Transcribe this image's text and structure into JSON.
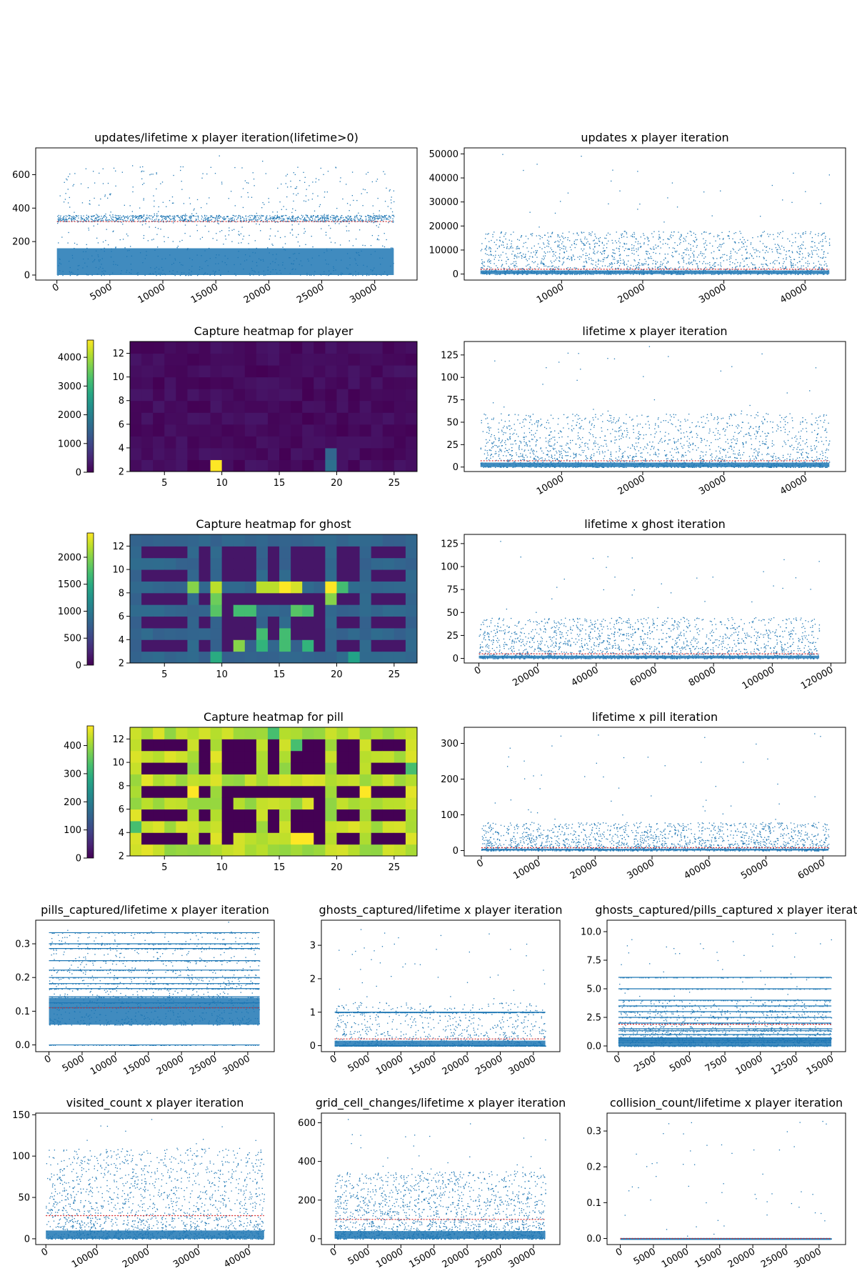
{
  "figure": {
    "background": "#ffffff",
    "scatter_color": "#1f77b4",
    "mean_line_color": "#d62728",
    "colormap": "viridis"
  },
  "chart_data": [
    {
      "id": "updates_lifetime",
      "type": "scatter",
      "title": "updates/lifetime x player iteration(lifetime>0)",
      "xlim": [
        -2000,
        34000
      ],
      "ylim": [
        -30,
        760
      ],
      "xticks": [
        0,
        5000,
        10000,
        15000,
        20000,
        25000,
        30000
      ],
      "xtick_labels": [
        "0",
        "5000",
        "10000",
        "15000",
        "20000",
        "25000",
        "30000"
      ],
      "yticks": [
        0,
        200,
        400,
        600
      ],
      "ytick_labels": [
        "0",
        "200",
        "400",
        "600"
      ],
      "series_x_range": [
        0,
        31800
      ],
      "mean": 320,
      "band": {
        "center": 340,
        "spread": 40
      },
      "body": {
        "low": 0,
        "median": 320,
        "high": 650
      },
      "outliers": {
        "max": 740
      }
    },
    {
      "id": "updates",
      "type": "scatter",
      "title": "updates x player iteration",
      "xlim": [
        -2000,
        45000
      ],
      "ylim": [
        -2500,
        52500
      ],
      "xticks": [
        10000,
        20000,
        30000,
        40000
      ],
      "xtick_labels": [
        "10000",
        "20000",
        "30000",
        "40000"
      ],
      "yticks": [
        0,
        10000,
        20000,
        30000,
        40000,
        50000
      ],
      "ytick_labels": [
        "0",
        "10000",
        "20000",
        "30000",
        "40000",
        "50000"
      ],
      "series_x_range": [
        0,
        43000
      ],
      "mean": 2000,
      "body": {
        "low": 0,
        "median": 3000,
        "high": 18000
      },
      "outliers": {
        "max": 50000
      }
    },
    {
      "id": "heat_player",
      "type": "heatmap",
      "title": "Capture heatmap for player",
      "xlim": [
        2,
        27
      ],
      "ylim": [
        2,
        13
      ],
      "xticks": [
        5,
        10,
        15,
        20,
        25
      ],
      "xtick_labels": [
        "5",
        "10",
        "15",
        "20",
        "25"
      ],
      "yticks": [
        2,
        4,
        6,
        8,
        10,
        12
      ],
      "ytick_labels": [
        "2",
        "4",
        "6",
        "8",
        "10",
        "12"
      ],
      "colorbar": {
        "min": 0,
        "max": 4600,
        "ticks": [
          0,
          1000,
          2000,
          3000,
          4000
        ],
        "tick_labels": [
          "0",
          "1000",
          "2000",
          "3000",
          "4000"
        ]
      },
      "base_value": 0,
      "cells": [
        {
          "x": 9,
          "y": 2,
          "v": 4600
        },
        {
          "x": 19,
          "y": 2,
          "v": 1700
        },
        {
          "x": 19,
          "y": 3,
          "v": 1500
        }
      ]
    },
    {
      "id": "lifetime_player",
      "type": "scatter",
      "title": "lifetime x player iteration",
      "xlim": [
        -2000,
        45000
      ],
      "ylim": [
        -5,
        140
      ],
      "xticks": [
        10000,
        20000,
        30000,
        40000
      ],
      "xtick_labels": [
        "10000",
        "20000",
        "30000",
        "40000"
      ],
      "yticks": [
        0,
        25,
        50,
        75,
        100,
        125
      ],
      "ytick_labels": [
        "0",
        "25",
        "50",
        "75",
        "100",
        "125"
      ],
      "series_x_range": [
        0,
        43000
      ],
      "mean": 7,
      "body": {
        "low": 0,
        "median": 10,
        "high": 60
      },
      "outliers": {
        "max": 135
      }
    },
    {
      "id": "heat_ghost",
      "type": "heatmap",
      "title": "Capture heatmap for ghost",
      "xlim": [
        2,
        27
      ],
      "ylim": [
        2,
        13
      ],
      "xticks": [
        5,
        10,
        15,
        20,
        25
      ],
      "xtick_labels": [
        "5",
        "10",
        "15",
        "20",
        "25"
      ],
      "yticks": [
        2,
        4,
        6,
        8,
        10,
        12
      ],
      "ytick_labels": [
        "2",
        "4",
        "6",
        "8",
        "10",
        "12"
      ],
      "colorbar": {
        "min": 0,
        "max": 2450,
        "ticks": [
          0,
          500,
          1000,
          1500,
          2000
        ],
        "tick_labels": [
          "0",
          "500",
          "1000",
          "1500",
          "2000"
        ]
      },
      "base_value": 150,
      "path_value": 800,
      "paths": "pacman_maze",
      "cells": [
        {
          "x": 13,
          "y": 8,
          "v": 2200
        },
        {
          "x": 14,
          "y": 8,
          "v": 2200
        },
        {
          "x": 15,
          "y": 8,
          "v": 2450
        },
        {
          "x": 16,
          "y": 8,
          "v": 2300
        },
        {
          "x": 7,
          "y": 8,
          "v": 2000
        },
        {
          "x": 9,
          "y": 8,
          "v": 2200
        },
        {
          "x": 19,
          "y": 8,
          "v": 2450
        },
        {
          "x": 20,
          "y": 8,
          "v": 1700
        },
        {
          "x": 9,
          "y": 6,
          "v": 1800
        },
        {
          "x": 9,
          "y": 7,
          "v": 1900
        },
        {
          "x": 11,
          "y": 6,
          "v": 1700
        },
        {
          "x": 12,
          "y": 6,
          "v": 1700
        },
        {
          "x": 16,
          "y": 6,
          "v": 1800
        },
        {
          "x": 17,
          "y": 6,
          "v": 1700
        },
        {
          "x": 13,
          "y": 3,
          "v": 1600
        },
        {
          "x": 13,
          "y": 4,
          "v": 1700
        },
        {
          "x": 15,
          "y": 3,
          "v": 1700
        },
        {
          "x": 15,
          "y": 4,
          "v": 1700
        },
        {
          "x": 11,
          "y": 3,
          "v": 2000
        },
        {
          "x": 17,
          "y": 3,
          "v": 1600
        },
        {
          "x": 9,
          "y": 2,
          "v": 1500
        },
        {
          "x": 21,
          "y": 2,
          "v": 1400
        },
        {
          "x": 19,
          "y": 7,
          "v": 2000
        }
      ]
    },
    {
      "id": "lifetime_ghost",
      "type": "scatter",
      "title": "lifetime x ghost iteration",
      "xlim": [
        -5000,
        125000
      ],
      "ylim": [
        -5,
        135
      ],
      "xticks": [
        0,
        20000,
        40000,
        60000,
        80000,
        100000,
        120000
      ],
      "xtick_labels": [
        "0",
        "20000",
        "40000",
        "60000",
        "80000",
        "100000",
        "120000"
      ],
      "yticks": [
        0,
        25,
        50,
        75,
        100,
        125
      ],
      "ytick_labels": [
        "0",
        "25",
        "50",
        "75",
        "100",
        "125"
      ],
      "series_x_range": [
        0,
        116000
      ],
      "mean": 5,
      "body": {
        "low": 0,
        "median": 6,
        "high": 45
      },
      "outliers": {
        "max": 128
      }
    },
    {
      "id": "heat_pill",
      "type": "heatmap",
      "title": "Capture heatmap for pill",
      "xlim": [
        2,
        27
      ],
      "ylim": [
        2,
        13
      ],
      "xticks": [
        5,
        10,
        15,
        20,
        25
      ],
      "xtick_labels": [
        "5",
        "10",
        "15",
        "20",
        "25"
      ],
      "yticks": [
        2,
        4,
        6,
        8,
        10,
        12
      ],
      "ytick_labels": [
        "2",
        "4",
        "6",
        "8",
        "10",
        "12"
      ],
      "colorbar": {
        "min": 0,
        "max": 470,
        "ticks": [
          0,
          100,
          200,
          300,
          400
        ],
        "tick_labels": [
          "0",
          "100",
          "200",
          "300",
          "400"
        ]
      },
      "base_value": 0,
      "path_value": 420,
      "paths": "pacman_maze",
      "cells": [
        {
          "x": 7,
          "y": 7,
          "v": 470
        },
        {
          "x": 22,
          "y": 7,
          "v": 470
        },
        {
          "x": 16,
          "y": 3,
          "v": 470
        },
        {
          "x": 17,
          "y": 3,
          "v": 470
        },
        {
          "x": 14,
          "y": 12,
          "v": 330
        },
        {
          "x": 16,
          "y": 11,
          "v": 330
        },
        {
          "x": 2,
          "y": 4,
          "v": 330
        },
        {
          "x": 26,
          "y": 9,
          "v": 330
        }
      ]
    },
    {
      "id": "lifetime_pill",
      "type": "scatter",
      "title": "lifetime x pill iteration",
      "xlim": [
        -3000,
        64000
      ],
      "ylim": [
        -15,
        345
      ],
      "xticks": [
        0,
        10000,
        20000,
        30000,
        40000,
        50000,
        60000
      ],
      "xtick_labels": [
        "0",
        "10000",
        "20000",
        "30000",
        "40000",
        "50000",
        "60000"
      ],
      "yticks": [
        0,
        100,
        200,
        300
      ],
      "ytick_labels": [
        "0",
        "100",
        "200",
        "300"
      ],
      "series_x_range": [
        0,
        61000
      ],
      "mean": 8,
      "body": {
        "low": 0,
        "median": 10,
        "high": 80
      },
      "outliers": {
        "max": 330
      }
    },
    {
      "id": "pills_lifetime",
      "type": "scatter",
      "title": "pills_captured/lifetime x player iteration",
      "xlim": [
        -2000,
        34000
      ],
      "ylim": [
        -0.02,
        0.37
      ],
      "xticks": [
        0,
        5000,
        10000,
        15000,
        20000,
        25000,
        30000
      ],
      "xtick_labels": [
        "0",
        "5000",
        "10000",
        "15000",
        "20000",
        "25000",
        "30000"
      ],
      "yticks": [
        0,
        0.1,
        0.2,
        0.3
      ],
      "ytick_labels": [
        "0.0",
        "0.1",
        "0.2",
        "0.3"
      ],
      "series_x_range": [
        0,
        31800
      ],
      "mean": 0.11,
      "levels": [
        0,
        0.333,
        0.3,
        0.286,
        0.25,
        0.222,
        0.2,
        0.182,
        0.167,
        0.143,
        0.125,
        0.111
      ],
      "body": {
        "low": 0.06,
        "median": 0.22,
        "high": 0.33
      },
      "outliers": {
        "max": 0.37
      }
    },
    {
      "id": "ghosts_lifetime",
      "type": "scatter",
      "title": "ghosts_captured/lifetime x player iteration",
      "xlim": [
        -2000,
        34000
      ],
      "ylim": [
        -0.18,
        3.75
      ],
      "xticks": [
        0,
        5000,
        10000,
        15000,
        20000,
        25000,
        30000
      ],
      "xtick_labels": [
        "0",
        "5000",
        "10000",
        "15000",
        "20000",
        "25000",
        "30000"
      ],
      "yticks": [
        0,
        1,
        2,
        3
      ],
      "ytick_labels": [
        "0",
        "1",
        "2",
        "3"
      ],
      "series_x_range": [
        0,
        31800
      ],
      "mean": 0.2,
      "levels": [
        0,
        1
      ],
      "body": {
        "low": 0,
        "median": 0.3,
        "high": 1.3
      },
      "outliers": {
        "max": 3.6
      }
    },
    {
      "id": "ghosts_pills",
      "type": "scatter",
      "title": "ghosts_captured/pills_captured x player iterat",
      "xlim": [
        -800,
        16000
      ],
      "ylim": [
        -0.5,
        11
      ],
      "xticks": [
        0,
        2500,
        5000,
        7500,
        10000,
        12500,
        15000
      ],
      "xtick_labels": [
        "0",
        "2500",
        "5000",
        "7500",
        "10000",
        "12500",
        "15000"
      ],
      "yticks": [
        0,
        2.5,
        5,
        7.5,
        10
      ],
      "ytick_labels": [
        "0.0",
        "2.5",
        "5.0",
        "7.5",
        "10.0"
      ],
      "series_x_range": [
        0,
        15000
      ],
      "mean": 1.9,
      "levels": [
        0,
        0.333,
        0.5,
        0.667,
        1,
        1.333,
        1.5,
        2,
        2.5,
        3,
        3.5,
        4,
        5,
        6
      ],
      "body": {
        "low": 0,
        "median": 1.5,
        "high": 4
      },
      "outliers": {
        "max": 10
      }
    },
    {
      "id": "visited_count",
      "type": "scatter",
      "title": "visited_count x player iteration",
      "xlim": [
        -2000,
        45000
      ],
      "ylim": [
        -7,
        152
      ],
      "xticks": [
        0,
        10000,
        20000,
        30000,
        40000
      ],
      "xtick_labels": [
        "0",
        "10000",
        "20000",
        "30000",
        "40000"
      ],
      "yticks": [
        0,
        50,
        100,
        150
      ],
      "ytick_labels": [
        "0",
        "50",
        "100",
        "150"
      ],
      "series_x_range": [
        0,
        43000
      ],
      "mean": 28,
      "body": {
        "low": 0,
        "median": 20,
        "high": 110
      },
      "outliers": {
        "max": 145
      }
    },
    {
      "id": "grid_changes",
      "type": "scatter",
      "title": "grid_cell_changes/lifetime x player iteration",
      "xlim": [
        -2000,
        34000
      ],
      "ylim": [
        -30,
        650
      ],
      "xticks": [
        0,
        5000,
        10000,
        15000,
        20000,
        25000,
        30000
      ],
      "xtick_labels": [
        "0",
        "5000",
        "10000",
        "15000",
        "20000",
        "25000",
        "30000"
      ],
      "yticks": [
        0,
        200,
        400,
        600
      ],
      "ytick_labels": [
        "0",
        "200",
        "400",
        "600"
      ],
      "series_x_range": [
        0,
        31800
      ],
      "mean": 100,
      "body": {
        "low": 0,
        "median": 80,
        "high": 350
      },
      "outliers": {
        "max": 620
      }
    },
    {
      "id": "collision_count",
      "type": "scatter",
      "title": "collision_count/lifetime x player iteration",
      "xlim": [
        -2000,
        34000
      ],
      "ylim": [
        -0.017,
        0.35
      ],
      "xticks": [
        0,
        5000,
        10000,
        15000,
        20000,
        25000,
        30000
      ],
      "xtick_labels": [
        "0",
        "5000",
        "10000",
        "15000",
        "20000",
        "25000",
        "30000"
      ],
      "yticks": [
        0,
        0.1,
        0.2,
        0.3
      ],
      "ytick_labels": [
        "0.0",
        "0.1",
        "0.2",
        "0.3"
      ],
      "series_x_range": [
        0,
        31800
      ],
      "mean": 0,
      "levels": [
        0
      ],
      "body": {
        "low": 0,
        "median": 0,
        "high": 0
      },
      "outliers": {
        "max": 0.33
      }
    }
  ]
}
